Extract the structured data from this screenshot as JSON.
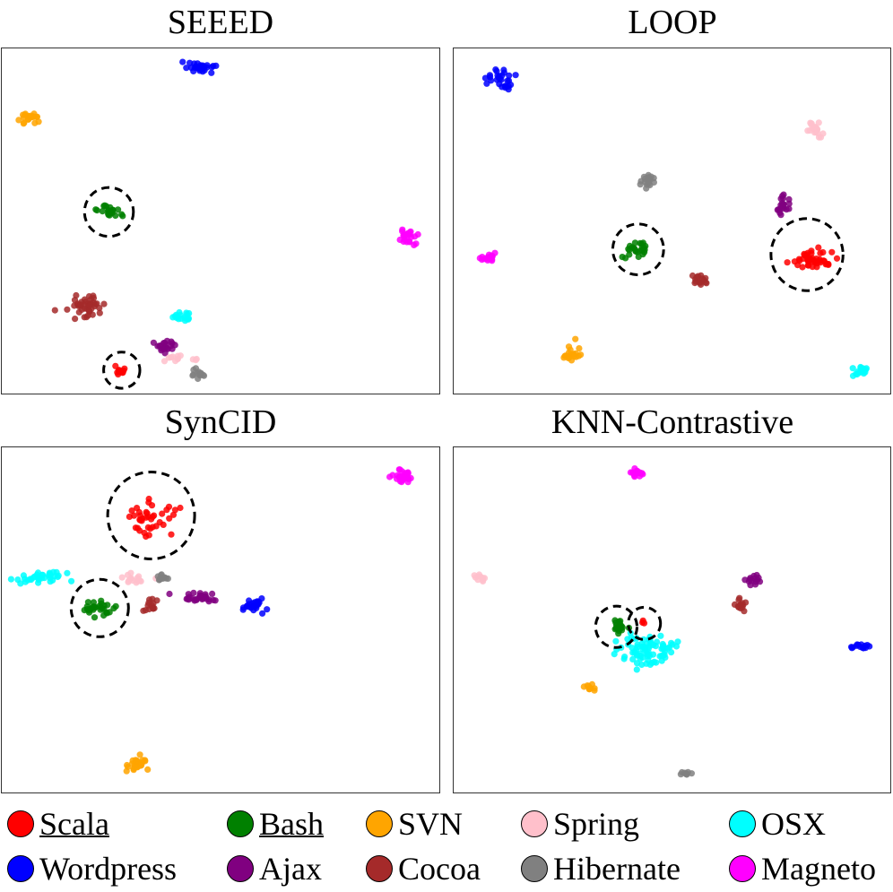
{
  "colors": {
    "Scala": "#ff0000",
    "Bash": "#008000",
    "SVN": "#ffa500",
    "Spring": "#ffc0cb",
    "OSX": "#00ffff",
    "Wordpress": "#0000ff",
    "Ajax": "#800080",
    "Cocoa": "#a52a2a",
    "Hibernate": "#808080",
    "Magneto": "#ff00ff"
  },
  "legend": [
    {
      "label": "Scala",
      "underlined": true
    },
    {
      "label": "Bash",
      "underlined": true
    },
    {
      "label": "SVN",
      "underlined": false
    },
    {
      "label": "Spring",
      "underlined": false
    },
    {
      "label": "OSX",
      "underlined": false
    },
    {
      "label": "Wordpress",
      "underlined": false
    },
    {
      "label": "Ajax",
      "underlined": false
    },
    {
      "label": "Cocoa",
      "underlined": false
    },
    {
      "label": "Hibernate",
      "underlined": false
    },
    {
      "label": "Magneto",
      "underlined": false
    }
  ],
  "chart_data": [
    {
      "type": "scatter",
      "title": "SEEED",
      "xlim": [
        0,
        100
      ],
      "ylim": [
        0,
        100
      ],
      "clusters": [
        {
          "series": "Wordpress",
          "x": 45.5,
          "y": 94.4,
          "sx": 1.5,
          "sy": 0.8,
          "n": 30
        },
        {
          "series": "SVN",
          "x": 6.7,
          "y": 79.8,
          "sx": 1.1,
          "sy": 0.9,
          "n": 22
        },
        {
          "series": "Bash",
          "x": 24.6,
          "y": 52.6,
          "sx": 1.3,
          "sy": 0.9,
          "n": 22
        },
        {
          "series": "Magneto",
          "x": 92.6,
          "y": 45.6,
          "sx": 0.9,
          "sy": 1.0,
          "n": 25
        },
        {
          "series": "Cocoa",
          "x": 19.5,
          "y": 25.7,
          "sx": 1.8,
          "sy": 1.6,
          "n": 45
        },
        {
          "series": "OSX",
          "x": 41.6,
          "y": 22.6,
          "sx": 1.3,
          "sy": 0.7,
          "n": 18
        },
        {
          "series": "Ajax",
          "x": 37.3,
          "y": 14.3,
          "sx": 1.1,
          "sy": 1.1,
          "n": 20
        },
        {
          "series": "Spring",
          "x": 40.5,
          "y": 10.4,
          "sx": 1.5,
          "sy": 0.6,
          "n": 12
        },
        {
          "series": "Hibernate",
          "x": 44.5,
          "y": 5.8,
          "sx": 0.8,
          "sy": 0.9,
          "n": 14
        },
        {
          "series": "Scala",
          "x": 27.3,
          "y": 7.0,
          "sx": 0.7,
          "sy": 0.6,
          "n": 12
        }
      ],
      "highlights": [
        {
          "series": "Bash",
          "x": 24.6,
          "y": 52.6
        },
        {
          "series": "Scala",
          "x": 27.5,
          "y": 7.0
        }
      ]
    },
    {
      "type": "scatter",
      "title": "LOOP",
      "xlim": [
        0,
        100
      ],
      "ylim": [
        0,
        100
      ],
      "clusters": [
        {
          "series": "Wordpress",
          "x": 11.0,
          "y": 91.4,
          "sx": 1.4,
          "sy": 1.5,
          "n": 28
        },
        {
          "series": "Spring",
          "x": 82.4,
          "y": 76.3,
          "sx": 0.9,
          "sy": 1.1,
          "n": 20
        },
        {
          "series": "Hibernate",
          "x": 44.3,
          "y": 61.6,
          "sx": 0.9,
          "sy": 1.1,
          "n": 18
        },
        {
          "series": "Ajax",
          "x": 75.6,
          "y": 54.2,
          "sx": 0.8,
          "sy": 1.7,
          "n": 20
        },
        {
          "series": "Bash",
          "x": 42.1,
          "y": 41.8,
          "sx": 1.4,
          "sy": 1.4,
          "n": 25
        },
        {
          "series": "Scala",
          "x": 81.9,
          "y": 39.0,
          "sx": 2.4,
          "sy": 1.2,
          "n": 45
        },
        {
          "series": "Cocoa",
          "x": 56.3,
          "y": 33.0,
          "sx": 0.9,
          "sy": 1.0,
          "n": 16
        },
        {
          "series": "Magneto",
          "x": 8.1,
          "y": 39.3,
          "sx": 1.0,
          "sy": 0.6,
          "n": 18
        },
        {
          "series": "SVN",
          "x": 27.3,
          "y": 11.8,
          "sx": 1.2,
          "sy": 1.3,
          "n": 20
        },
        {
          "series": "OSX",
          "x": 92.7,
          "y": 6.8,
          "sx": 0.9,
          "sy": 0.8,
          "n": 18
        }
      ],
      "highlights": [
        {
          "series": "Bash",
          "x": 42.3,
          "y": 41.8
        },
        {
          "series": "Scala",
          "x": 80.8,
          "y": 40.3
        }
      ]
    },
    {
      "type": "scatter",
      "title": "SynCID",
      "xlim": [
        0,
        100
      ],
      "ylim": [
        0,
        100
      ],
      "clusters": [
        {
          "series": "Magneto",
          "x": 91.2,
          "y": 91.2,
          "sx": 1.1,
          "sy": 0.8,
          "n": 30
        },
        {
          "series": "Scala",
          "x": 33.6,
          "y": 79.3,
          "sx": 3.1,
          "sy": 2.2,
          "n": 40
        },
        {
          "series": "OSX",
          "x": 9.1,
          "y": 62.0,
          "sx": 2.4,
          "sy": 1.1,
          "n": 35
        },
        {
          "series": "Spring",
          "x": 30.4,
          "y": 61.7,
          "sx": 1.4,
          "sy": 0.9,
          "n": 16
        },
        {
          "series": "Hibernate",
          "x": 36.4,
          "y": 62.2,
          "sx": 0.9,
          "sy": 0.6,
          "n": 12
        },
        {
          "series": "Bash",
          "x": 22.1,
          "y": 53.4,
          "sx": 1.7,
          "sy": 1.2,
          "n": 30
        },
        {
          "series": "Cocoa",
          "x": 34.1,
          "y": 54.1,
          "sx": 0.6,
          "sy": 1.2,
          "n": 14
        },
        {
          "series": "Ajax",
          "x": 45.4,
          "y": 56.1,
          "sx": 2.2,
          "sy": 0.7,
          "n": 30
        },
        {
          "series": "Wordpress",
          "x": 57.4,
          "y": 54.2,
          "sx": 1.1,
          "sy": 0.9,
          "n": 25
        },
        {
          "series": "SVN",
          "x": 31.2,
          "y": 8.5,
          "sx": 1.2,
          "sy": 1.0,
          "n": 28
        }
      ],
      "highlights": [
        {
          "series": "Scala",
          "x": 34.2,
          "y": 80.1
        },
        {
          "series": "Bash",
          "x": 22.5,
          "y": 53.4
        }
      ]
    },
    {
      "type": "scatter",
      "title": "KNN-Contrastive",
      "xlim": [
        0,
        100
      ],
      "ylim": [
        0,
        100
      ],
      "clusters": [
        {
          "series": "Magneto",
          "x": 42.3,
          "y": 92.4,
          "sx": 0.9,
          "sy": 0.6,
          "n": 16
        },
        {
          "series": "Spring",
          "x": 6.3,
          "y": 62.2,
          "sx": 0.6,
          "sy": 0.5,
          "n": 10
        },
        {
          "series": "Ajax",
          "x": 68.6,
          "y": 61.7,
          "sx": 0.9,
          "sy": 0.6,
          "n": 14
        },
        {
          "series": "Cocoa",
          "x": 65.8,
          "y": 53.9,
          "sx": 0.6,
          "sy": 1.0,
          "n": 14
        },
        {
          "series": "Bash",
          "x": 37.7,
          "y": 48.5,
          "sx": 0.8,
          "sy": 1.2,
          "n": 20
        },
        {
          "series": "Scala",
          "x": 43.5,
          "y": 49.4,
          "sx": 0.3,
          "sy": 0.3,
          "n": 3
        },
        {
          "series": "OSX",
          "x": 44.1,
          "y": 41.3,
          "sx": 3.0,
          "sy": 2.3,
          "n": 80
        },
        {
          "series": "Wordpress",
          "x": 92.6,
          "y": 42.3,
          "sx": 1.0,
          "sy": 0.5,
          "n": 14
        },
        {
          "series": "SVN",
          "x": 31.1,
          "y": 30.2,
          "sx": 0.7,
          "sy": 0.7,
          "n": 10
        },
        {
          "series": "Hibernate",
          "x": 53.3,
          "y": 5.8,
          "sx": 0.8,
          "sy": 0.4,
          "n": 8
        }
      ],
      "highlights": [
        {
          "series": "Bash",
          "x": 37.3,
          "y": 48.0
        },
        {
          "series": "Scala",
          "x": 43.7,
          "y": 49.0
        }
      ]
    }
  ]
}
